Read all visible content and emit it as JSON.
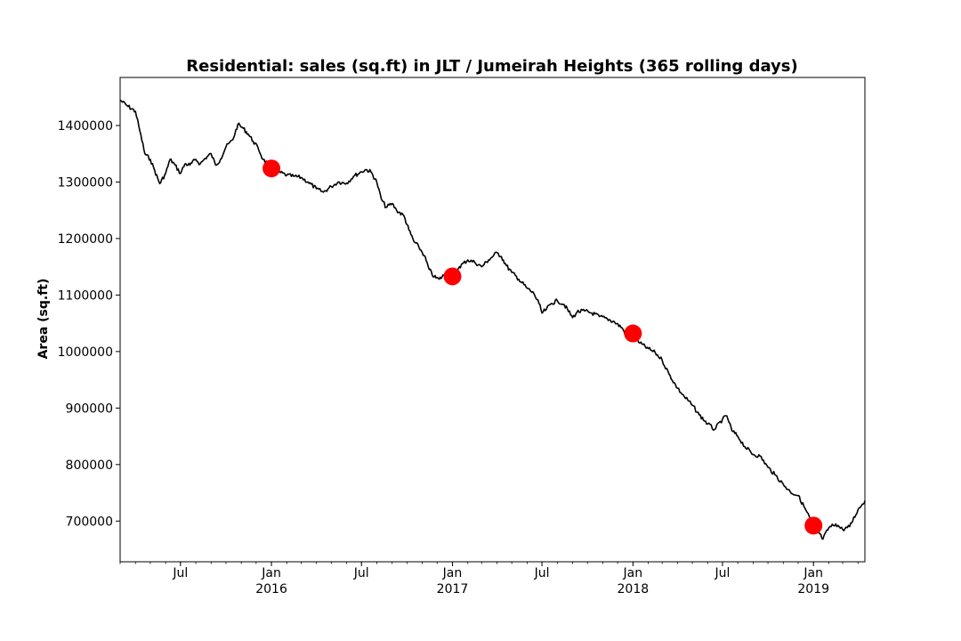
{
  "chart_data": {
    "type": "line",
    "title": "Residential: sales (sq.ft) in JLT / Jumeirah Heights (365 rolling days)",
    "xlabel": "",
    "ylabel": "Area (sq.ft)",
    "xlim": [
      "2015-03-01",
      "2019-04-15"
    ],
    "ylim": [
      628000,
      1485000
    ],
    "grid": false,
    "legend": "none",
    "line_color": "#000000",
    "marker_color": "#ff0000",
    "yticks": [
      {
        "value": 700000,
        "label": "700000"
      },
      {
        "value": 800000,
        "label": "800000"
      },
      {
        "value": 900000,
        "label": "900000"
      },
      {
        "value": 1000000,
        "label": "1000000"
      },
      {
        "value": 1100000,
        "label": "1100000"
      },
      {
        "value": 1200000,
        "label": "1200000"
      },
      {
        "value": 1300000,
        "label": "1300000"
      },
      {
        "value": 1400000,
        "label": "1400000"
      }
    ],
    "xticks": [
      {
        "date": "2015-07-01",
        "line1": "Jul",
        "line2": ""
      },
      {
        "date": "2016-01-01",
        "line1": "Jan",
        "line2": "2016"
      },
      {
        "date": "2016-07-01",
        "line1": "Jul",
        "line2": ""
      },
      {
        "date": "2017-01-01",
        "line1": "Jan",
        "line2": "2017"
      },
      {
        "date": "2017-07-01",
        "line1": "Jul",
        "line2": ""
      },
      {
        "date": "2018-01-01",
        "line1": "Jan",
        "line2": "2018"
      },
      {
        "date": "2018-07-01",
        "line1": "Jul",
        "line2": ""
      },
      {
        "date": "2019-01-01",
        "line1": "Jan",
        "line2": "2019"
      }
    ],
    "series": [
      {
        "points": [
          [
            "2015-03-01",
            1445000
          ],
          [
            "2015-03-15",
            1435000
          ],
          [
            "2015-04-01",
            1425000
          ],
          [
            "2015-04-10",
            1390000
          ],
          [
            "2015-04-20",
            1350000
          ],
          [
            "2015-05-01",
            1340000
          ],
          [
            "2015-05-10",
            1320000
          ],
          [
            "2015-05-20",
            1297000
          ],
          [
            "2015-06-01",
            1315000
          ],
          [
            "2015-06-10",
            1340000
          ],
          [
            "2015-06-20",
            1330000
          ],
          [
            "2015-07-01",
            1315000
          ],
          [
            "2015-07-10",
            1332000
          ],
          [
            "2015-07-20",
            1330000
          ],
          [
            "2015-08-01",
            1340000
          ],
          [
            "2015-08-10",
            1332000
          ],
          [
            "2015-08-20",
            1342000
          ],
          [
            "2015-09-01",
            1350000
          ],
          [
            "2015-09-10",
            1330000
          ],
          [
            "2015-09-20",
            1340000
          ],
          [
            "2015-10-01",
            1362000
          ],
          [
            "2015-10-15",
            1375000
          ],
          [
            "2015-10-25",
            1402000
          ],
          [
            "2015-11-05",
            1395000
          ],
          [
            "2015-11-15",
            1385000
          ],
          [
            "2015-11-25",
            1372000
          ],
          [
            "2015-12-05",
            1360000
          ],
          [
            "2015-12-15",
            1340000
          ],
          [
            "2016-01-01",
            1325000
          ],
          [
            "2016-01-15",
            1318000
          ],
          [
            "2016-02-01",
            1312000
          ],
          [
            "2016-02-15",
            1310000
          ],
          [
            "2016-03-01",
            1308000
          ],
          [
            "2016-03-15",
            1300000
          ],
          [
            "2016-04-01",
            1288000
          ],
          [
            "2016-04-15",
            1282000
          ],
          [
            "2016-05-01",
            1292000
          ],
          [
            "2016-05-15",
            1300000
          ],
          [
            "2016-06-01",
            1298000
          ],
          [
            "2016-06-15",
            1310000
          ],
          [
            "2016-07-01",
            1318000
          ],
          [
            "2016-07-10",
            1322000
          ],
          [
            "2016-07-20",
            1318000
          ],
          [
            "2016-08-01",
            1300000
          ],
          [
            "2016-08-10",
            1270000
          ],
          [
            "2016-08-20",
            1255000
          ],
          [
            "2016-09-01",
            1262000
          ],
          [
            "2016-09-10",
            1250000
          ],
          [
            "2016-09-25",
            1240000
          ],
          [
            "2016-10-05",
            1215000
          ],
          [
            "2016-10-15",
            1195000
          ],
          [
            "2016-10-25",
            1185000
          ],
          [
            "2016-11-05",
            1170000
          ],
          [
            "2016-11-15",
            1145000
          ],
          [
            "2016-11-25",
            1132000
          ],
          [
            "2016-12-05",
            1128000
          ],
          [
            "2016-12-15",
            1135000
          ],
          [
            "2017-01-01",
            1133000
          ],
          [
            "2017-01-15",
            1150000
          ],
          [
            "2017-02-01",
            1162000
          ],
          [
            "2017-02-15",
            1158000
          ],
          [
            "2017-03-01",
            1150000
          ],
          [
            "2017-03-15",
            1162000
          ],
          [
            "2017-04-01",
            1175000
          ],
          [
            "2017-04-10",
            1168000
          ],
          [
            "2017-04-20",
            1152000
          ],
          [
            "2017-05-01",
            1140000
          ],
          [
            "2017-05-15",
            1128000
          ],
          [
            "2017-06-01",
            1112000
          ],
          [
            "2017-06-15",
            1102000
          ],
          [
            "2017-06-25",
            1085000
          ],
          [
            "2017-07-01",
            1068000
          ],
          [
            "2017-07-10",
            1075000
          ],
          [
            "2017-07-20",
            1085000
          ],
          [
            "2017-08-01",
            1090000
          ],
          [
            "2017-08-15",
            1083000
          ],
          [
            "2017-09-01",
            1060000
          ],
          [
            "2017-09-10",
            1070000
          ],
          [
            "2017-09-25",
            1072000
          ],
          [
            "2017-10-10",
            1068000
          ],
          [
            "2017-10-25",
            1062000
          ],
          [
            "2017-11-10",
            1058000
          ],
          [
            "2017-11-25",
            1052000
          ],
          [
            "2017-12-10",
            1042000
          ],
          [
            "2017-12-20",
            1025000
          ],
          [
            "2018-01-01",
            1032000
          ],
          [
            "2018-01-15",
            1015000
          ],
          [
            "2018-02-01",
            1005000
          ],
          [
            "2018-02-15",
            998000
          ],
          [
            "2018-03-01",
            985000
          ],
          [
            "2018-03-15",
            960000
          ],
          [
            "2018-04-01",
            935000
          ],
          [
            "2018-04-15",
            920000
          ],
          [
            "2018-05-01",
            905000
          ],
          [
            "2018-05-15",
            888000
          ],
          [
            "2018-06-01",
            872000
          ],
          [
            "2018-06-15",
            862000
          ],
          [
            "2018-07-01",
            880000
          ],
          [
            "2018-07-10",
            886000
          ],
          [
            "2018-07-20",
            860000
          ],
          [
            "2018-08-01",
            850000
          ],
          [
            "2018-08-15",
            832000
          ],
          [
            "2018-09-01",
            818000
          ],
          [
            "2018-09-15",
            815000
          ],
          [
            "2018-10-01",
            795000
          ],
          [
            "2018-10-15",
            782000
          ],
          [
            "2018-11-01",
            765000
          ],
          [
            "2018-11-15",
            752000
          ],
          [
            "2018-12-01",
            745000
          ],
          [
            "2018-12-15",
            722000
          ],
          [
            "2019-01-01",
            692000
          ],
          [
            "2019-01-10",
            682000
          ],
          [
            "2019-01-20",
            668000
          ],
          [
            "2019-02-01",
            688000
          ],
          [
            "2019-02-15",
            695000
          ],
          [
            "2019-03-01",
            685000
          ],
          [
            "2019-03-15",
            690000
          ],
          [
            "2019-04-01",
            720000
          ],
          [
            "2019-04-10",
            730000
          ],
          [
            "2019-04-15",
            736000
          ]
        ]
      }
    ],
    "highlights": [
      {
        "date": "2016-01-01",
        "value": 1324000
      },
      {
        "date": "2017-01-01",
        "value": 1133000
      },
      {
        "date": "2018-01-01",
        "value": 1032000
      },
      {
        "date": "2019-01-01",
        "value": 692000
      }
    ]
  }
}
